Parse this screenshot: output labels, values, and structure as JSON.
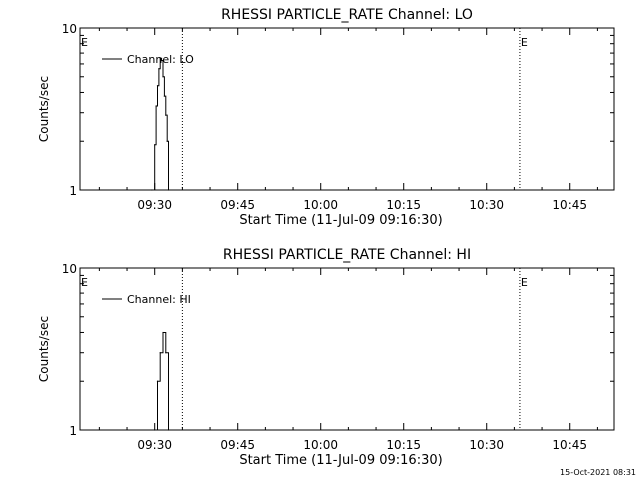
{
  "chart_data": [
    {
      "type": "line",
      "title": "RHESSI PARTICLE_RATE Channel: LO",
      "xlabel": "Start Time (11-Jul-09 09:16:30)",
      "ylabel": "Counts/sec",
      "yscale": "log",
      "ylim": [
        1,
        10
      ],
      "xlim": [
        "09:16:30",
        "10:53:00"
      ],
      "x_ticks": [
        "09:30",
        "09:45",
        "10:00",
        "10:15",
        "10:30",
        "10:45"
      ],
      "y_ticks": [
        "1",
        "10"
      ],
      "legend": {
        "label": "Channel: LO",
        "position": "top-left"
      },
      "event_markers": [
        {
          "time": "09:35:00",
          "label": ""
        },
        {
          "time": "10:36:00",
          "label": "E"
        },
        {
          "time": "10:53:00",
          "label": ""
        }
      ],
      "left_marker_label": "E",
      "series": [
        {
          "name": "Channel: LO",
          "x": [
            "09:29:30",
            "09:30:00",
            "09:30:15",
            "09:30:30",
            "09:30:45",
            "09:31:00",
            "09:31:15",
            "09:31:30",
            "09:31:45",
            "09:32:00",
            "09:32:15",
            "09:32:30"
          ],
          "y": [
            1.0,
            1.9,
            3.3,
            4.4,
            5.6,
            6.5,
            6.3,
            5.0,
            3.8,
            2.9,
            2.0,
            1.0
          ]
        }
      ]
    },
    {
      "type": "line",
      "title": "RHESSI PARTICLE_RATE Channel: HI",
      "xlabel": "Start Time (11-Jul-09 09:16:30)",
      "ylabel": "Counts/sec",
      "yscale": "log",
      "ylim": [
        1,
        10
      ],
      "xlim": [
        "09:16:30",
        "10:53:00"
      ],
      "x_ticks": [
        "09:30",
        "09:45",
        "10:00",
        "10:15",
        "10:30",
        "10:45"
      ],
      "y_ticks": [
        "1",
        "10"
      ],
      "legend": {
        "label": "Channel: HI",
        "position": "top-left"
      },
      "event_markers": [
        {
          "time": "09:35:00",
          "label": ""
        },
        {
          "time": "10:36:00",
          "label": "E"
        },
        {
          "time": "10:53:00",
          "label": ""
        }
      ],
      "left_marker_label": "E",
      "series": [
        {
          "name": "Channel: HI",
          "x": [
            "09:30:00",
            "09:30:30",
            "09:31:00",
            "09:31:30",
            "09:32:00",
            "09:32:30"
          ],
          "y": [
            1.0,
            2.0,
            3.0,
            4.0,
            3.0,
            1.0
          ]
        }
      ]
    }
  ],
  "footer": {
    "timestamp": "15-Oct-2021 08:31"
  }
}
